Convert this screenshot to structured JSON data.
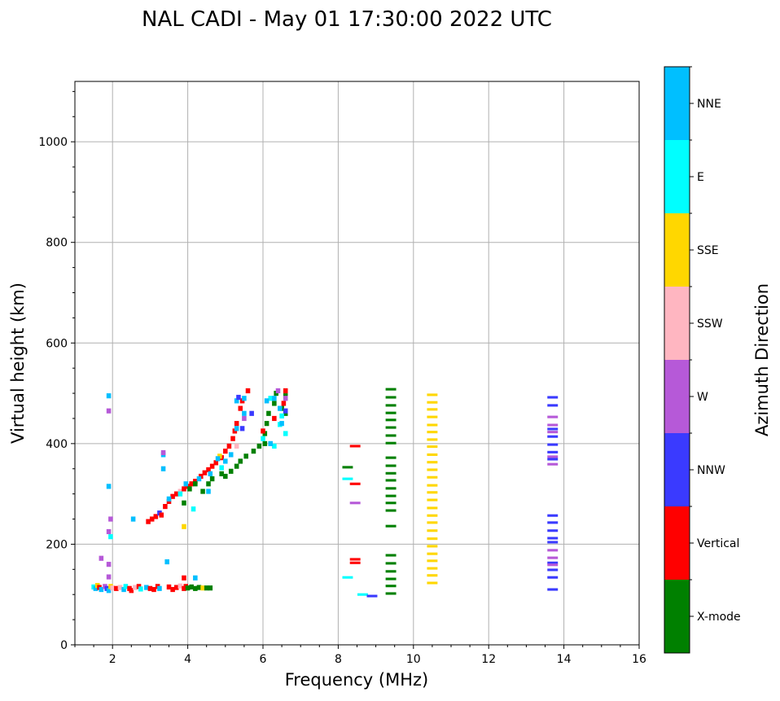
{
  "chart_data": {
    "type": "scatter",
    "title": "NAL CADI - May 01 17:30:00 2022 UTC",
    "xlabel": "Frequency (MHz)",
    "ylabel": "Virtual height (km)",
    "xlim": [
      1,
      16
    ],
    "ylim": [
      0,
      1120
    ],
    "xticks": [
      2,
      4,
      6,
      8,
      10,
      12,
      14,
      16
    ],
    "yticks": [
      0,
      200,
      400,
      600,
      800,
      1000
    ],
    "grid": true,
    "colorbar": {
      "label": "Azimuth Direction",
      "classes": [
        "X-mode",
        "Vertical",
        "NNW",
        "W",
        "SSW",
        "SSE",
        "E",
        "NNE"
      ],
      "colors": [
        "#008000",
        "#ff0000",
        "#3a3aff",
        "#b659d8",
        "#ffb6c1",
        "#ffd700",
        "#00ffff",
        "#00bfff"
      ]
    },
    "cells": [
      [
        1.5,
        115,
        6
      ],
      [
        1.55,
        112,
        7
      ],
      [
        1.6,
        118,
        5
      ],
      [
        1.65,
        114,
        1
      ],
      [
        1.7,
        110,
        7
      ],
      [
        1.8,
        116,
        3
      ],
      [
        1.85,
        112,
        2
      ],
      [
        1.9,
        108,
        7
      ],
      [
        1.95,
        116,
        5
      ],
      [
        2.0,
        113,
        4
      ],
      [
        2.1,
        112,
        1
      ],
      [
        2.2,
        114,
        4
      ],
      [
        2.3,
        110,
        7
      ],
      [
        2.35,
        116,
        6
      ],
      [
        2.45,
        112,
        1
      ],
      [
        2.5,
        108,
        1
      ],
      [
        2.6,
        114,
        4
      ],
      [
        2.7,
        116,
        1
      ],
      [
        2.75,
        111,
        6
      ],
      [
        2.9,
        114,
        7
      ],
      [
        3.0,
        112,
        1
      ],
      [
        3.1,
        110,
        1
      ],
      [
        3.2,
        116,
        1
      ],
      [
        3.25,
        112,
        7
      ],
      [
        3.5,
        115,
        1
      ],
      [
        3.6,
        110,
        1
      ],
      [
        3.7,
        114,
        1
      ],
      [
        3.8,
        117,
        4
      ],
      [
        3.9,
        112,
        1
      ],
      [
        3.95,
        116,
        1
      ],
      [
        4.0,
        113,
        0
      ],
      [
        4.1,
        115,
        0
      ],
      [
        4.2,
        112,
        0
      ],
      [
        4.3,
        114,
        0
      ],
      [
        4.4,
        113,
        5
      ],
      [
        4.5,
        113,
        0
      ],
      [
        4.6,
        113,
        0
      ],
      [
        3.45,
        165,
        7
      ],
      [
        4.2,
        133,
        7
      ],
      [
        3.9,
        133,
        1
      ],
      [
        1.9,
        135,
        3
      ],
      [
        1.9,
        160,
        3
      ],
      [
        1.7,
        172,
        3
      ],
      [
        1.95,
        215,
        6
      ],
      [
        1.9,
        225,
        3
      ],
      [
        1.95,
        250,
        3
      ],
      [
        2.55,
        250,
        7
      ],
      [
        1.9,
        315,
        7
      ],
      [
        1.9,
        465,
        3
      ],
      [
        1.9,
        495,
        7
      ],
      [
        3.9,
        235,
        5
      ],
      [
        4.15,
        270,
        6
      ],
      [
        3.35,
        350,
        7
      ],
      [
        3.35,
        378,
        7
      ],
      [
        3.35,
        382,
        3
      ],
      [
        2.95,
        245,
        1
      ],
      [
        3.05,
        250,
        1
      ],
      [
        3.15,
        255,
        1
      ],
      [
        3.25,
        262,
        2
      ],
      [
        3.3,
        258,
        1
      ],
      [
        3.4,
        275,
        1
      ],
      [
        3.5,
        285,
        1
      ],
      [
        3.6,
        295,
        1
      ],
      [
        3.7,
        300,
        1
      ],
      [
        3.8,
        305,
        4
      ],
      [
        3.9,
        310,
        1
      ],
      [
        4.0,
        315,
        1
      ],
      [
        4.1,
        320,
        1
      ],
      [
        4.2,
        325,
        1
      ],
      [
        4.35,
        335,
        1
      ],
      [
        4.45,
        342,
        1
      ],
      [
        4.55,
        348,
        1
      ],
      [
        4.65,
        355,
        1
      ],
      [
        4.75,
        362,
        1
      ],
      [
        4.9,
        372,
        1
      ],
      [
        5.0,
        385,
        1
      ],
      [
        5.1,
        395,
        1
      ],
      [
        5.2,
        410,
        1
      ],
      [
        5.25,
        425,
        1
      ],
      [
        5.3,
        440,
        1
      ],
      [
        5.4,
        470,
        1
      ],
      [
        5.45,
        485,
        1
      ],
      [
        5.6,
        505,
        1
      ],
      [
        5.3,
        395,
        4
      ],
      [
        4.85,
        375,
        5
      ],
      [
        3.5,
        290,
        7
      ],
      [
        3.8,
        300,
        6
      ],
      [
        3.95,
        320,
        7
      ],
      [
        4.3,
        330,
        7
      ],
      [
        4.6,
        340,
        7
      ],
      [
        4.8,
        370,
        7
      ],
      [
        5.0,
        365,
        7
      ],
      [
        5.15,
        378,
        7
      ],
      [
        5.3,
        430,
        7
      ],
      [
        5.3,
        485,
        7
      ],
      [
        5.5,
        460,
        7
      ],
      [
        5.5,
        490,
        7
      ],
      [
        4.55,
        305,
        7
      ],
      [
        4.9,
        352,
        6
      ],
      [
        5.35,
        492,
        2
      ],
      [
        5.45,
        430,
        2
      ],
      [
        5.5,
        450,
        3
      ],
      [
        5.7,
        460,
        2
      ],
      [
        3.9,
        282,
        0
      ],
      [
        4.05,
        310,
        0
      ],
      [
        4.2,
        320,
        0
      ],
      [
        4.4,
        305,
        0
      ],
      [
        4.55,
        320,
        0
      ],
      [
        4.65,
        330,
        0
      ],
      [
        4.9,
        340,
        0
      ],
      [
        5.0,
        335,
        0
      ],
      [
        5.15,
        345,
        0
      ],
      [
        5.3,
        355,
        0
      ],
      [
        5.4,
        365,
        0
      ],
      [
        5.55,
        375,
        0
      ],
      [
        5.75,
        385,
        0
      ],
      [
        5.9,
        395,
        0
      ],
      [
        6.05,
        420,
        0
      ],
      [
        6.1,
        440,
        0
      ],
      [
        6.15,
        460,
        0
      ],
      [
        6.3,
        480,
        0
      ],
      [
        6.35,
        500,
        0
      ],
      [
        6.5,
        470,
        0
      ],
      [
        6.6,
        495,
        0
      ],
      [
        6.6,
        460,
        0
      ],
      [
        6.05,
        400,
        0
      ],
      [
        6.3,
        395,
        6
      ],
      [
        6.45,
        438,
        6
      ],
      [
        6.6,
        420,
        6
      ],
      [
        6.5,
        455,
        6
      ],
      [
        6.0,
        410,
        6
      ],
      [
        6.2,
        490,
        6
      ],
      [
        6.6,
        465,
        2
      ],
      [
        6.6,
        505,
        1
      ],
      [
        6.55,
        480,
        1
      ],
      [
        6.3,
        450,
        1
      ],
      [
        6.0,
        425,
        1
      ],
      [
        6.4,
        505,
        3
      ],
      [
        6.6,
        490,
        3
      ],
      [
        6.1,
        485,
        7
      ],
      [
        6.3,
        490,
        7
      ],
      [
        6.5,
        440,
        7
      ],
      [
        6.2,
        400,
        7
      ],
      [
        6.45,
        470,
        7
      ]
    ],
    "dashes": [
      [
        9.4,
        508,
        0
      ],
      [
        9.4,
        492,
        0
      ],
      [
        9.4,
        476,
        0
      ],
      [
        9.4,
        461,
        0
      ],
      [
        9.4,
        447,
        0
      ],
      [
        9.4,
        432,
        0
      ],
      [
        9.4,
        416,
        0
      ],
      [
        9.4,
        401,
        0
      ],
      [
        9.4,
        372,
        0
      ],
      [
        9.4,
        356,
        0
      ],
      [
        9.4,
        341,
        0
      ],
      [
        9.4,
        327,
        0
      ],
      [
        9.4,
        311,
        0
      ],
      [
        9.4,
        296,
        0
      ],
      [
        9.4,
        282,
        0
      ],
      [
        9.4,
        267,
        0
      ],
      [
        9.4,
        236,
        0
      ],
      [
        9.4,
        178,
        0
      ],
      [
        9.4,
        162,
        0
      ],
      [
        9.4,
        146,
        0
      ],
      [
        9.4,
        131,
        0
      ],
      [
        9.4,
        117,
        0
      ],
      [
        9.4,
        102,
        0
      ],
      [
        10.5,
        497,
        5
      ],
      [
        10.5,
        482,
        5
      ],
      [
        10.5,
        468,
        5
      ],
      [
        10.5,
        453,
        5
      ],
      [
        10.5,
        437,
        5
      ],
      [
        10.5,
        423,
        5
      ],
      [
        10.5,
        408,
        5
      ],
      [
        10.5,
        394,
        5
      ],
      [
        10.5,
        378,
        5
      ],
      [
        10.5,
        363,
        5
      ],
      [
        10.5,
        348,
        5
      ],
      [
        10.5,
        333,
        5
      ],
      [
        10.5,
        317,
        5
      ],
      [
        10.5,
        303,
        5
      ],
      [
        10.5,
        288,
        5
      ],
      [
        10.5,
        272,
        5
      ],
      [
        10.5,
        257,
        5
      ],
      [
        10.5,
        243,
        5
      ],
      [
        10.5,
        227,
        5
      ],
      [
        10.5,
        211,
        5
      ],
      [
        10.5,
        196,
        5
      ],
      [
        10.5,
        181,
        5
      ],
      [
        10.5,
        167,
        5
      ],
      [
        10.5,
        152,
        5
      ],
      [
        10.5,
        138,
        5
      ],
      [
        10.5,
        123,
        5
      ],
      [
        13.7,
        492,
        2
      ],
      [
        13.7,
        476,
        2
      ],
      [
        13.7,
        453,
        3
      ],
      [
        13.7,
        437,
        3
      ],
      [
        13.7,
        429,
        2
      ],
      [
        13.7,
        423,
        3
      ],
      [
        13.7,
        414,
        2
      ],
      [
        13.7,
        398,
        2
      ],
      [
        13.7,
        383,
        2
      ],
      [
        13.7,
        374,
        3
      ],
      [
        13.7,
        369,
        2
      ],
      [
        13.7,
        359,
        3
      ],
      [
        13.7,
        257,
        2
      ],
      [
        13.7,
        243,
        2
      ],
      [
        13.7,
        227,
        2
      ],
      [
        13.7,
        212,
        2
      ],
      [
        13.7,
        204,
        2
      ],
      [
        13.7,
        188,
        3
      ],
      [
        13.7,
        173,
        3
      ],
      [
        13.7,
        163,
        2
      ],
      [
        13.7,
        159,
        3
      ],
      [
        13.7,
        149,
        2
      ],
      [
        13.7,
        134,
        2
      ],
      [
        13.7,
        110,
        2
      ],
      [
        8.45,
        395,
        1
      ],
      [
        8.25,
        353,
        0
      ],
      [
        8.25,
        330,
        6
      ],
      [
        8.45,
        320,
        1
      ],
      [
        8.45,
        282,
        3
      ],
      [
        8.45,
        170,
        1
      ],
      [
        8.45,
        163,
        1
      ],
      [
        8.25,
        134,
        6
      ],
      [
        8.65,
        100,
        6
      ],
      [
        8.9,
        97,
        2
      ]
    ]
  }
}
